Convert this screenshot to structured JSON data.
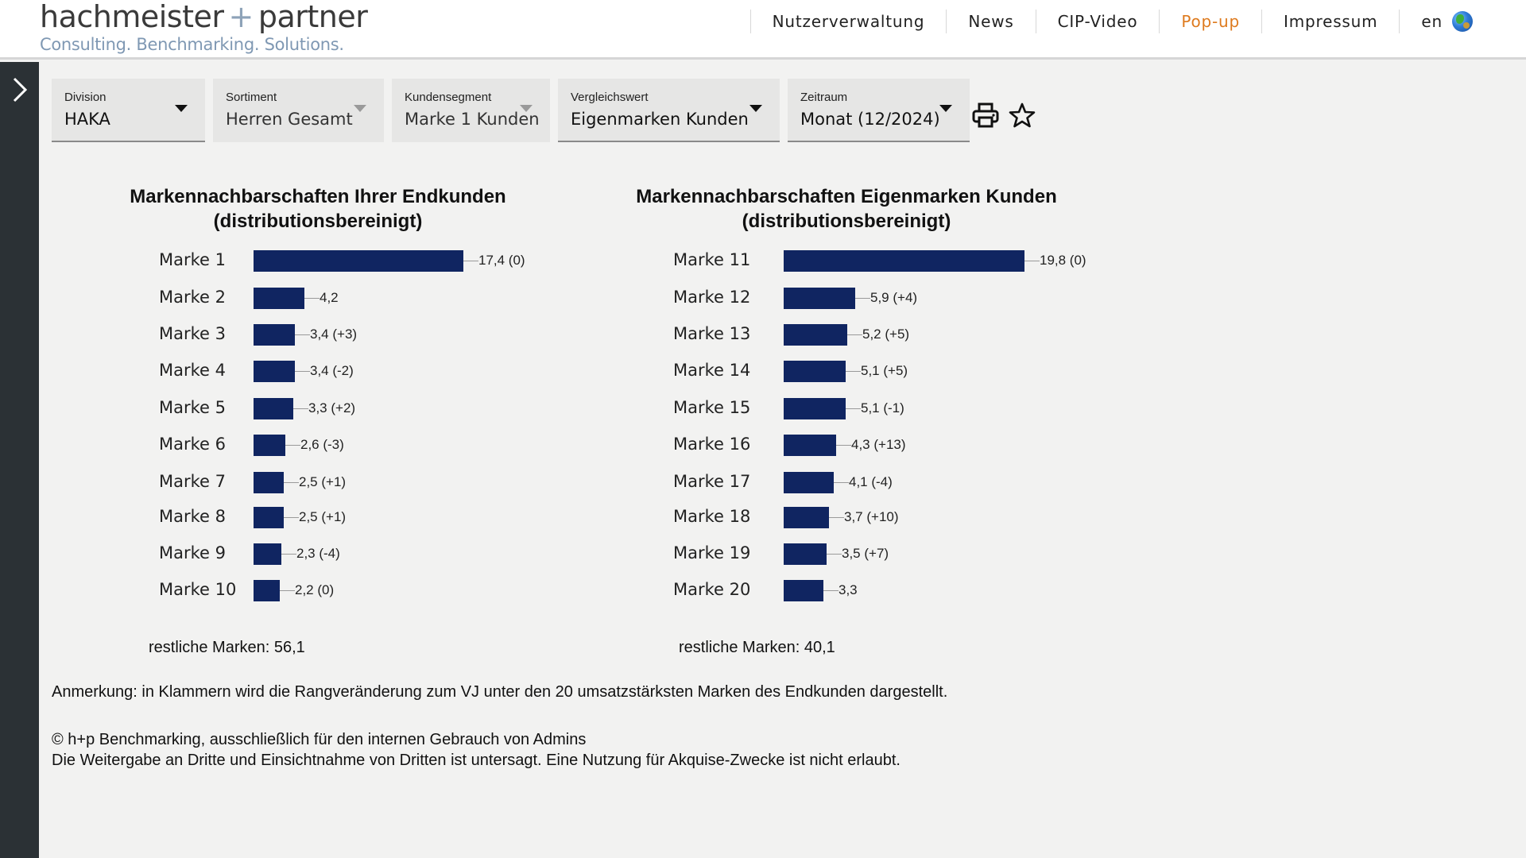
{
  "header": {
    "logo_left": "hachmeister",
    "logo_plus": "+",
    "logo_right": "partner",
    "logo_tagline": "Consulting. Benchmarking. Solutions.",
    "nav": [
      "Nutzerverwaltung",
      "News",
      "CIP-Video",
      "Pop-up",
      "Impressum"
    ],
    "active_nav": "Pop-up",
    "language": "en",
    "accent_color": "#de7a1e"
  },
  "filters": [
    {
      "label": "Division",
      "value": "HAKA"
    },
    {
      "label": "Sortiment",
      "value": "Herren Gesamt"
    },
    {
      "label": "Kundensegment",
      "value": "Marke 1 Kunden"
    },
    {
      "label": "Vergleichswert",
      "value": "Eigenmarken Kunden"
    },
    {
      "label": "Zeitraum",
      "value": "Monat (12/2024)"
    }
  ],
  "chart_data": [
    {
      "type": "bar",
      "orientation": "horizontal",
      "title_line1": "Markennachbarschaften Ihrer Endkunden",
      "title_line2": "(distributionsbereinigt)",
      "categories": [
        "Marke 1",
        "Marke 2",
        "Marke 3",
        "Marke 4",
        "Marke 5",
        "Marke 6",
        "Marke 7",
        "Marke 8",
        "Marke 9",
        "Marke 10"
      ],
      "values": [
        17.4,
        4.2,
        3.4,
        3.4,
        3.3,
        2.6,
        2.5,
        2.5,
        2.3,
        2.2
      ],
      "value_labels": [
        "17,4 (0)",
        "4,2",
        "3,4 (+3)",
        "3,4 (-2)",
        "3,3 (+2)",
        "2,6 (-3)",
        "2,5 (+1)",
        "2,5 (+1)",
        "2,3 (-4)",
        "2,2 (0)"
      ],
      "remaining_label": "restliche Marken: 56,1",
      "color": "#102561"
    },
    {
      "type": "bar",
      "orientation": "horizontal",
      "title_line1": "Markennachbarschaften Eigenmarken Kunden",
      "title_line2": "(distributionsbereinigt)",
      "categories": [
        "Marke 11",
        "Marke 12",
        "Marke 13",
        "Marke 14",
        "Marke 15",
        "Marke 16",
        "Marke 17",
        "Marke 18",
        "Marke 19",
        "Marke 20"
      ],
      "values": [
        19.8,
        5.9,
        5.2,
        5.1,
        5.1,
        4.3,
        4.1,
        3.7,
        3.5,
        3.3
      ],
      "value_labels": [
        "19,8 (0)",
        "5,9 (+4)",
        "5,2 (+5)",
        "5,1 (+5)",
        "5,1 (-1)",
        "4,3 (+13)",
        "4,1 (-4)",
        "3,7 (+10)",
        "3,5 (+7)",
        "3,3"
      ],
      "remaining_label": "restliche Marken: 40,1",
      "color": "#102561"
    }
  ],
  "footer": {
    "note": "Anmerkung: in Klammern wird die Rangveränderung zum VJ unter den 20 umsatzstärksten Marken des Endkunden dargestellt.",
    "copyright_line1": "© h+p Benchmarking, ausschließlich für den internen Gebrauch von Admins",
    "copyright_line2": "Die Weitergabe an Dritte und Einsichtnahme von Dritten ist untersagt. Eine Nutzung für Akquise-Zwecke ist nicht erlaubt."
  }
}
